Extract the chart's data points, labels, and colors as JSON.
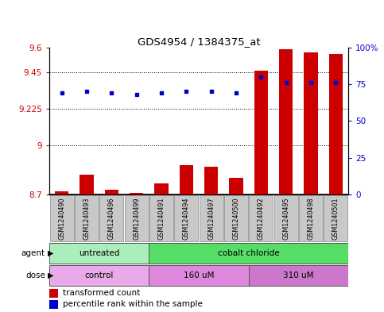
{
  "title": "GDS4954 / 1384375_at",
  "samples": [
    "GSM1240490",
    "GSM1240493",
    "GSM1240496",
    "GSM1240499",
    "GSM1240491",
    "GSM1240494",
    "GSM1240497",
    "GSM1240500",
    "GSM1240492",
    "GSM1240495",
    "GSM1240498",
    "GSM1240501"
  ],
  "transformed_count": [
    8.72,
    8.82,
    8.73,
    8.71,
    8.77,
    8.88,
    8.87,
    8.8,
    9.46,
    9.59,
    9.57,
    9.56
  ],
  "percentile_rank": [
    69,
    70,
    69,
    68,
    69,
    70,
    70,
    69,
    80,
    76,
    76,
    76
  ],
  "ylim_left": [
    8.7,
    9.6
  ],
  "ylim_right": [
    0,
    100
  ],
  "yticks_left": [
    8.7,
    9.0,
    9.225,
    9.45,
    9.6
  ],
  "ytick_labels_left": [
    "8.7",
    "9",
    "9.225",
    "9.45",
    "9.6"
  ],
  "yticks_right": [
    0,
    25,
    50,
    75,
    100
  ],
  "ytick_labels_right": [
    "0",
    "25",
    "50",
    "75",
    "100%"
  ],
  "hlines": [
    9.45,
    9.225,
    9.0
  ],
  "bar_color": "#cc0000",
  "dot_color": "#0000cc",
  "agent_groups": [
    {
      "label": "untreated",
      "start": 0,
      "end": 4,
      "color": "#aaeebb"
    },
    {
      "label": "cobalt chloride",
      "start": 4,
      "end": 12,
      "color": "#55dd66"
    }
  ],
  "dose_groups": [
    {
      "label": "control",
      "start": 0,
      "end": 4,
      "color": "#e8aae8"
    },
    {
      "label": "160 uM",
      "start": 4,
      "end": 8,
      "color": "#dd88dd"
    },
    {
      "label": "310 uM",
      "start": 8,
      "end": 12,
      "color": "#cc77cc"
    }
  ],
  "sample_box_color": "#c8c8c8",
  "legend_bar_label": "transformed count",
  "legend_dot_label": "percentile rank within the sample",
  "bar_width": 0.55,
  "plot_bg": "#ffffff"
}
